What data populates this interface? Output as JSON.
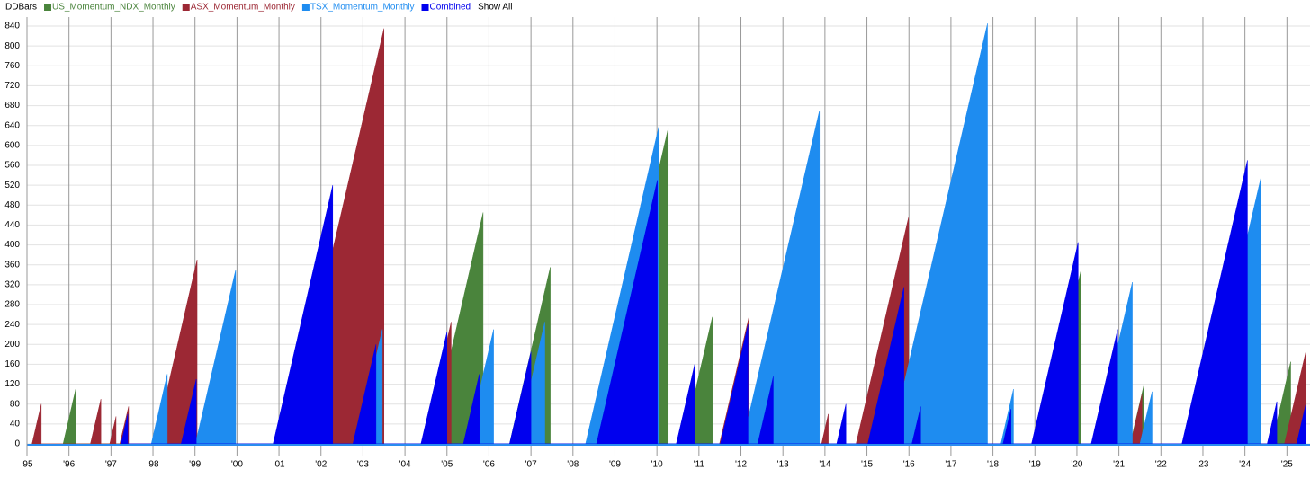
{
  "chart_data": {
    "type": "area",
    "title": "DDBars",
    "show_all": "Show All",
    "grid": true,
    "xlim": [
      1995,
      2025.55
    ],
    "ylim": [
      0,
      840
    ],
    "xticks": [
      {
        "value": 1995,
        "label": "'95"
      },
      {
        "value": 1996,
        "label": "'96"
      },
      {
        "value": 1997,
        "label": "'97"
      },
      {
        "value": 1998,
        "label": "'98"
      },
      {
        "value": 1999,
        "label": "'99"
      },
      {
        "value": 2000,
        "label": "'00"
      },
      {
        "value": 2001,
        "label": "'01"
      },
      {
        "value": 2002,
        "label": "'02"
      },
      {
        "value": 2003,
        "label": "'03"
      },
      {
        "value": 2004,
        "label": "'04"
      },
      {
        "value": 2005,
        "label": "'05"
      },
      {
        "value": 2006,
        "label": "'06"
      },
      {
        "value": 2007,
        "label": "'07"
      },
      {
        "value": 2008,
        "label": "'08"
      },
      {
        "value": 2009,
        "label": "'09"
      },
      {
        "value": 2010,
        "label": "'10"
      },
      {
        "value": 2011,
        "label": "'11"
      },
      {
        "value": 2012,
        "label": "'12"
      },
      {
        "value": 2013,
        "label": "'13"
      },
      {
        "value": 2014,
        "label": "'14"
      },
      {
        "value": 2015,
        "label": "'15"
      },
      {
        "value": 2016,
        "label": "'16"
      },
      {
        "value": 2017,
        "label": "'17"
      },
      {
        "value": 2018,
        "label": "'18"
      },
      {
        "value": 2019,
        "label": "'19"
      },
      {
        "value": 2020,
        "label": "'20"
      },
      {
        "value": 2021,
        "label": "'21"
      },
      {
        "value": 2022,
        "label": "'22"
      },
      {
        "value": 2023,
        "label": "'23"
      },
      {
        "value": 2024,
        "label": "'24"
      },
      {
        "value": 2025,
        "label": "'25"
      }
    ],
    "yticks": [
      0,
      40,
      80,
      120,
      160,
      200,
      240,
      280,
      320,
      360,
      400,
      440,
      480,
      520,
      560,
      600,
      640,
      680,
      720,
      760,
      800,
      840
    ],
    "series": [
      {
        "name": "US_Momentum_NDX_Monthly",
        "color": "#4a843c",
        "x": [
          1995.86,
          1996.16,
          1996.16,
          2004.59,
          2005.86,
          2005.86,
          2006.49,
          2007.46,
          2007.46,
          2008.53,
          2010.27,
          2010.27,
          2010.62,
          2011.32,
          2011.32,
          2019.14,
          2020.1,
          2020.1,
          2021.27,
          2021.6,
          2021.6,
          2024.64,
          2025.09,
          2025.09
        ],
        "values": [
          0,
          110,
          0,
          0,
          465,
          0,
          0,
          355,
          0,
          0,
          635,
          0,
          0,
          255,
          0,
          0,
          350,
          0,
          0,
          120,
          0,
          0,
          165,
          0
        ]
      },
      {
        "name": "ASX_Momentum_Monthly",
        "color": "#9c2834",
        "x": [
          1995.12,
          1995.34,
          1995.34,
          1996.51,
          1996.76,
          1996.76,
          1996.97,
          1997.12,
          1997.12,
          1997.21,
          1997.42,
          1997.42,
          1998.04,
          1999.05,
          1999.05,
          2001.21,
          2003.5,
          2003.5,
          2004.43,
          2005.1,
          2005.1,
          2011.49,
          2012.19,
          2012.19,
          2013.92,
          2014.08,
          2014.08,
          2014.74,
          2015.99,
          2015.99,
          2021.28,
          2021.55,
          2021.55,
          2024.94,
          2025.45,
          2025.45
        ],
        "values": [
          0,
          80,
          0,
          0,
          90,
          0,
          0,
          55,
          0,
          0,
          75,
          0,
          0,
          370,
          0,
          0,
          835,
          0,
          0,
          245,
          0,
          0,
          255,
          0,
          0,
          60,
          0,
          0,
          455,
          0,
          0,
          100,
          0,
          0,
          185,
          0
        ]
      },
      {
        "name": "TSX_Momentum_Monthly",
        "color": "#1e8cf0",
        "x": [
          1997.96,
          1998.34,
          1998.34,
          1999.01,
          1999.97,
          1999.97,
          2002.83,
          2003.46,
          2003.46,
          2005.48,
          2006.11,
          2006.11,
          2006.66,
          2007.33,
          2007.33,
          2008.3,
          2010.05,
          2010.05,
          2012.03,
          2013.87,
          2013.87,
          2015.55,
          2017.87,
          2017.87,
          2018.19,
          2018.49,
          2018.49,
          2020.43,
          2021.32,
          2021.32,
          2021.5,
          2021.79,
          2021.79,
          2022.91,
          2024.38,
          2024.38
        ],
        "values": [
          0,
          140,
          0,
          0,
          350,
          0,
          0,
          230,
          0,
          0,
          230,
          0,
          0,
          245,
          0,
          0,
          640,
          0,
          0,
          670,
          0,
          0,
          845,
          0,
          0,
          110,
          0,
          0,
          325,
          0,
          0,
          105,
          0,
          0,
          535,
          0
        ]
      },
      {
        "name": "Combined",
        "color": "#0000ee",
        "x": [
          1997.24,
          1997.4,
          1997.4,
          1998.67,
          1999.03,
          1999.03,
          2000.86,
          2002.28,
          2002.28,
          2002.76,
          2003.31,
          2003.31,
          2004.38,
          2005.0,
          2005.0,
          2005.39,
          2005.77,
          2005.77,
          2006.49,
          2007.0,
          2007.0,
          2008.56,
          2010.01,
          2010.01,
          2010.46,
          2010.9,
          2010.9,
          2011.51,
          2012.17,
          2012.17,
          2012.4,
          2012.77,
          2012.77,
          2014.28,
          2014.5,
          2014.5,
          2015.02,
          2015.88,
          2015.88,
          2016.07,
          2016.28,
          2016.28,
          2018.24,
          2018.43,
          2018.43,
          2018.92,
          2020.03,
          2020.03,
          2020.34,
          2020.97,
          2020.97,
          2022.5,
          2024.06,
          2024.06,
          2024.53,
          2024.76,
          2024.76,
          2025.23,
          2025.45,
          2025.45
        ],
        "values": [
          0,
          60,
          0,
          0,
          130,
          0,
          0,
          520,
          0,
          0,
          200,
          0,
          0,
          225,
          0,
          0,
          140,
          0,
          0,
          185,
          0,
          0,
          530,
          0,
          0,
          160,
          0,
          0,
          240,
          0,
          0,
          135,
          0,
          0,
          80,
          0,
          0,
          315,
          0,
          0,
          75,
          0,
          0,
          70,
          0,
          0,
          405,
          0,
          0,
          230,
          0,
          0,
          570,
          0,
          0,
          85,
          0,
          0,
          80,
          0
        ]
      }
    ]
  }
}
